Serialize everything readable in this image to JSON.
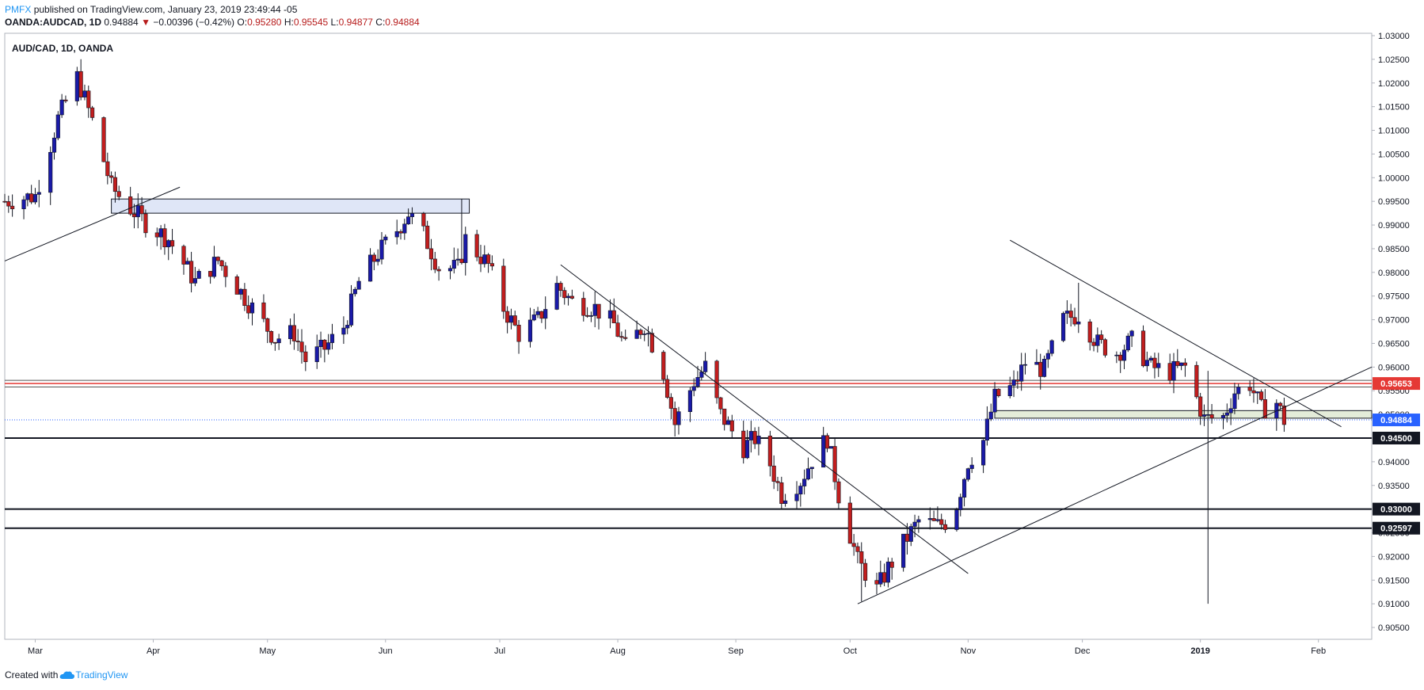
{
  "header": {
    "author": "PMFX",
    "published": "published on TradingView.com, January 23, 2019 23:49:44 -05",
    "symbol": "OANDA:AUDCAD, 1D",
    "last": "0.94884",
    "arrow": "▼",
    "change": "−0.00396 (−0.42%)",
    "o_label": "O:",
    "o": "0.95280",
    "h_label": "H:",
    "h": "0.95545",
    "l_label": "L:",
    "l": "0.94877",
    "c_label": "C:",
    "c": "0.94884"
  },
  "footer": {
    "created": "Created with",
    "brand": "TradingView"
  },
  "colors": {
    "up": "#1a1aa8",
    "down": "#c21e1e",
    "accent": "#2196f3",
    "resistance": "#e53935",
    "price": "#2962ff"
  },
  "chart_data": {
    "type": "candlestick",
    "title": "AUD/CAD, 1D, OANDA",
    "ylim": [
      0.9025,
      1.0305
    ],
    "y_ticks": [
      "1.03000",
      "1.02500",
      "1.02000",
      "1.01500",
      "1.01000",
      "1.00500",
      "1.00000",
      "0.99500",
      "0.99000",
      "0.98500",
      "0.98000",
      "0.97500",
      "0.97000",
      "0.96500",
      "0.96000",
      "0.95500",
      "0.95000",
      "0.94500",
      "0.94000",
      "0.93500",
      "0.93000",
      "0.92500",
      "0.92000",
      "0.91500",
      "0.91000",
      "0.90500"
    ],
    "y_tick_values": [
      1.03,
      1.025,
      1.02,
      1.015,
      1.01,
      1.005,
      1.0,
      0.995,
      0.99,
      0.985,
      0.98,
      0.975,
      0.97,
      0.965,
      0.96,
      0.955,
      0.95,
      0.945,
      0.94,
      0.935,
      0.93,
      0.925,
      0.92,
      0.915,
      0.91,
      0.905
    ],
    "x_labels": [
      {
        "label": "Mar",
        "date": "2018-03-01"
      },
      {
        "label": "Apr",
        "date": "2018-04-01"
      },
      {
        "label": "May",
        "date": "2018-05-01"
      },
      {
        "label": "Jun",
        "date": "2018-06-01"
      },
      {
        "label": "Jul",
        "date": "2018-07-01"
      },
      {
        "label": "Aug",
        "date": "2018-08-01"
      },
      {
        "label": "Sep",
        "date": "2018-09-01"
      },
      {
        "label": "Oct",
        "date": "2018-10-01"
      },
      {
        "label": "Nov",
        "date": "2018-11-01"
      },
      {
        "label": "Dec",
        "date": "2018-12-01"
      },
      {
        "label": "2019",
        "date": "2019-01-01"
      },
      {
        "label": "Feb",
        "date": "2019-02-01"
      }
    ],
    "x_range": [
      "2018-02-21",
      "2019-02-15"
    ],
    "price_levels": [
      {
        "label": "0.95653",
        "value": 0.95653,
        "color": "#e53935",
        "style": "solid-red"
      },
      {
        "label": "0.94884",
        "value": 0.94884,
        "color": "#2962ff",
        "style": "dotted-current"
      },
      {
        "label": "0.94500",
        "value": 0.945,
        "color": "#131722",
        "style": "solid-black"
      },
      {
        "label": "0.93000",
        "value": 0.93,
        "color": "#131722",
        "style": "solid-black"
      },
      {
        "label": "0.92597",
        "value": 0.92597,
        "color": "#131722",
        "style": "solid-black"
      }
    ],
    "extra_lines": [
      0.9572,
      0.9558
    ],
    "zones": [
      {
        "from": "2018-03-21",
        "to": "2018-06-23",
        "low": 0.9925,
        "high": 0.9955,
        "color": "#dfe6f7"
      },
      {
        "from": "2018-11-08",
        "to": "2019-02-15",
        "low": 0.9492,
        "high": 0.9508,
        "color": "#e4ecd9"
      }
    ],
    "trendlines": [
      {
        "x1": "2018-02-21",
        "y1": 0.9824,
        "x2": "2018-04-08",
        "y2": 0.998
      },
      {
        "x1": "2018-07-17",
        "y1": 0.9816,
        "x2": "2018-11-01",
        "y2": 0.9164
      },
      {
        "x1": "2018-10-03",
        "y1": 0.91,
        "x2": "2019-02-15",
        "y2": 0.96
      },
      {
        "x1": "2018-11-12",
        "y1": 0.9868,
        "x2": "2019-02-07",
        "y2": 0.9474
      }
    ],
    "series_points": [
      [
        "2018-02-21",
        0.995
      ],
      [
        "2018-03-01",
        0.9962
      ],
      [
        "2018-03-07",
        1.0125
      ],
      [
        "2018-03-12",
        1.0212
      ],
      [
        "2018-03-16",
        1.012
      ],
      [
        "2018-03-21",
        0.998
      ],
      [
        "2018-03-26",
        0.9935
      ],
      [
        "2018-03-30",
        0.9905
      ],
      [
        "2018-04-05",
        0.987
      ],
      [
        "2018-04-12",
        0.978
      ],
      [
        "2018-04-18",
        0.9825
      ],
      [
        "2018-04-23",
        0.977
      ],
      [
        "2018-04-27",
        0.9725
      ],
      [
        "2018-05-03",
        0.966
      ],
      [
        "2018-05-08",
        0.9672
      ],
      [
        "2018-05-11",
        0.9615
      ],
      [
        "2018-05-16",
        0.964
      ],
      [
        "2018-05-21",
        0.9685
      ],
      [
        "2018-05-25",
        0.978
      ],
      [
        "2018-05-30",
        0.984
      ],
      [
        "2018-06-04",
        0.989
      ],
      [
        "2018-06-07",
        0.9925
      ],
      [
        "2018-06-11",
        0.988
      ],
      [
        "2018-06-15",
        0.981
      ],
      [
        "2018-06-20",
        0.9808
      ],
      [
        "2018-06-22",
        0.987
      ],
      [
        "2018-06-28",
        0.9815
      ],
      [
        "2018-07-02",
        0.9725
      ],
      [
        "2018-07-06",
        0.967
      ],
      [
        "2018-07-11",
        0.97
      ],
      [
        "2018-07-16",
        0.9772
      ],
      [
        "2018-07-20",
        0.9738
      ],
      [
        "2018-07-26",
        0.9725
      ],
      [
        "2018-07-31",
        0.969
      ],
      [
        "2018-08-03",
        0.964
      ],
      [
        "2018-08-08",
        0.969
      ],
      [
        "2018-08-13",
        0.959
      ],
      [
        "2018-08-16",
        0.948
      ],
      [
        "2018-08-21",
        0.957
      ],
      [
        "2018-08-24",
        0.96
      ],
      [
        "2018-08-28",
        0.95
      ],
      [
        "2018-09-03",
        0.943
      ],
      [
        "2018-09-06",
        0.945
      ],
      [
        "2018-09-10",
        0.9395
      ],
      [
        "2018-09-13",
        0.933
      ],
      [
        "2018-09-18",
        0.936
      ],
      [
        "2018-09-21",
        0.9405
      ],
      [
        "2018-09-25",
        0.945
      ],
      [
        "2018-09-28",
        0.933
      ],
      [
        "2018-10-03",
        0.919
      ],
      [
        "2018-10-08",
        0.913
      ],
      [
        "2018-10-11",
        0.9175
      ],
      [
        "2018-10-16",
        0.924
      ],
      [
        "2018-10-19",
        0.9275
      ],
      [
        "2018-10-24",
        0.9265
      ],
      [
        "2018-10-28",
        0.928
      ],
      [
        "2018-11-01",
        0.94
      ],
      [
        "2018-11-05",
        0.9445
      ],
      [
        "2018-11-08",
        0.9535
      ],
      [
        "2018-11-13",
        0.956
      ],
      [
        "2018-11-16",
        0.961
      ],
      [
        "2018-11-21",
        0.9595
      ],
      [
        "2018-11-26",
        0.97
      ],
      [
        "2018-11-30",
        0.9712
      ],
      [
        "2018-12-05",
        0.965
      ],
      [
        "2018-12-10",
        0.963
      ],
      [
        "2018-12-14",
        0.9655
      ],
      [
        "2018-12-19",
        0.96
      ],
      [
        "2018-12-24",
        0.959
      ],
      [
        "2018-12-28",
        0.96
      ],
      [
        "2019-01-02",
        0.949
      ],
      [
        "2019-01-07",
        0.9495
      ],
      [
        "2019-01-10",
        0.9548
      ],
      [
        "2019-01-14",
        0.9565
      ],
      [
        "2019-01-17",
        0.951
      ],
      [
        "2019-01-21",
        0.9525
      ],
      [
        "2019-01-23",
        0.9488
      ]
    ],
    "extreme_wicks": [
      {
        "date": "2018-03-13",
        "high": 1.0242
      },
      {
        "date": "2018-06-07",
        "high": 0.9935
      },
      {
        "date": "2018-06-21",
        "high": 0.9955
      },
      {
        "date": "2018-10-04",
        "low": 0.9105
      },
      {
        "date": "2018-11-30",
        "high": 0.9778
      },
      {
        "date": "2019-01-03",
        "low": 0.91
      },
      {
        "date": "2019-01-03",
        "high": 0.9592
      }
    ]
  }
}
